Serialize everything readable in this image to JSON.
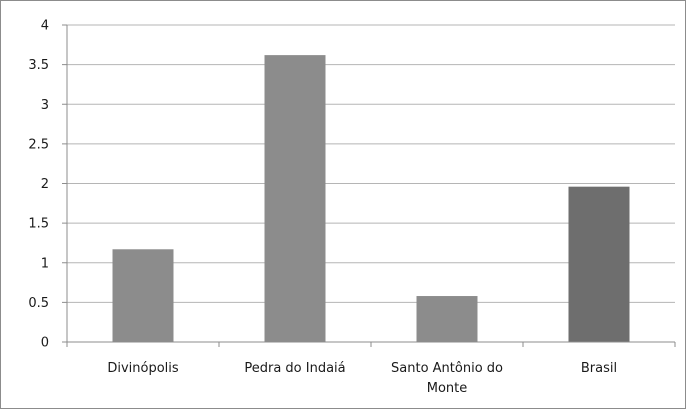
{
  "chart_data": {
    "type": "bar",
    "title": "",
    "xlabel": "",
    "ylabel": "",
    "categories": [
      "Divinópolis",
      "Pedra do Indaiá",
      "Santo Antônio do Monte",
      "Brasil"
    ],
    "category_lines": [
      [
        "Divinópolis"
      ],
      [
        "Pedra do Indaiá"
      ],
      [
        "Santo Antônio do",
        "Monte"
      ],
      [
        "Brasil"
      ]
    ],
    "values": [
      1.17,
      3.62,
      0.58,
      1.96
    ],
    "bar_colors": [
      "#8c8c8c",
      "#8c8c8c",
      "#8c8c8c",
      "#6e6e6e"
    ],
    "ylim": [
      0,
      4
    ],
    "yticks": [
      0,
      0.5,
      1,
      1.5,
      2,
      2.5,
      3,
      3.5,
      4
    ],
    "ytick_labels": [
      "0",
      "0.5",
      "1",
      "1.5",
      "2",
      "2.5",
      "3",
      "3.5",
      "4"
    ],
    "grid": true,
    "legend": "none",
    "colors": {
      "gridline": "#b5b5b5",
      "axis": "#8c8c8c",
      "text": "#1a1a1a"
    }
  }
}
